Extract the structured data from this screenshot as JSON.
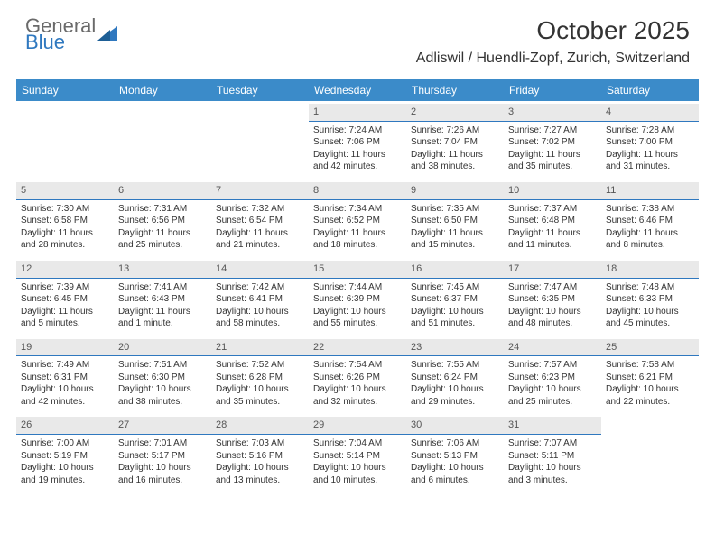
{
  "logo": {
    "line1": "General",
    "line2": "Blue"
  },
  "title": "October 2025",
  "location": "Adliswil / Huendli-Zopf, Zurich, Switzerland",
  "colors": {
    "header_bar": "#3b8bc9",
    "header_text": "#ffffff",
    "daynum_bg": "#e9e9e9",
    "daynum_border": "#2f78bf",
    "body_text": "#333333",
    "logo_gray": "#6a6a6a",
    "logo_blue": "#2f78bf",
    "background": "#ffffff"
  },
  "weekdays": [
    "Sunday",
    "Monday",
    "Tuesday",
    "Wednesday",
    "Thursday",
    "Friday",
    "Saturday"
  ],
  "weeks": [
    [
      {
        "n": "",
        "sr": "",
        "ss": "",
        "dl": ""
      },
      {
        "n": "",
        "sr": "",
        "ss": "",
        "dl": ""
      },
      {
        "n": "",
        "sr": "",
        "ss": "",
        "dl": ""
      },
      {
        "n": "1",
        "sr": "Sunrise: 7:24 AM",
        "ss": "Sunset: 7:06 PM",
        "dl": "Daylight: 11 hours and 42 minutes."
      },
      {
        "n": "2",
        "sr": "Sunrise: 7:26 AM",
        "ss": "Sunset: 7:04 PM",
        "dl": "Daylight: 11 hours and 38 minutes."
      },
      {
        "n": "3",
        "sr": "Sunrise: 7:27 AM",
        "ss": "Sunset: 7:02 PM",
        "dl": "Daylight: 11 hours and 35 minutes."
      },
      {
        "n": "4",
        "sr": "Sunrise: 7:28 AM",
        "ss": "Sunset: 7:00 PM",
        "dl": "Daylight: 11 hours and 31 minutes."
      }
    ],
    [
      {
        "n": "5",
        "sr": "Sunrise: 7:30 AM",
        "ss": "Sunset: 6:58 PM",
        "dl": "Daylight: 11 hours and 28 minutes."
      },
      {
        "n": "6",
        "sr": "Sunrise: 7:31 AM",
        "ss": "Sunset: 6:56 PM",
        "dl": "Daylight: 11 hours and 25 minutes."
      },
      {
        "n": "7",
        "sr": "Sunrise: 7:32 AM",
        "ss": "Sunset: 6:54 PM",
        "dl": "Daylight: 11 hours and 21 minutes."
      },
      {
        "n": "8",
        "sr": "Sunrise: 7:34 AM",
        "ss": "Sunset: 6:52 PM",
        "dl": "Daylight: 11 hours and 18 minutes."
      },
      {
        "n": "9",
        "sr": "Sunrise: 7:35 AM",
        "ss": "Sunset: 6:50 PM",
        "dl": "Daylight: 11 hours and 15 minutes."
      },
      {
        "n": "10",
        "sr": "Sunrise: 7:37 AM",
        "ss": "Sunset: 6:48 PM",
        "dl": "Daylight: 11 hours and 11 minutes."
      },
      {
        "n": "11",
        "sr": "Sunrise: 7:38 AM",
        "ss": "Sunset: 6:46 PM",
        "dl": "Daylight: 11 hours and 8 minutes."
      }
    ],
    [
      {
        "n": "12",
        "sr": "Sunrise: 7:39 AM",
        "ss": "Sunset: 6:45 PM",
        "dl": "Daylight: 11 hours and 5 minutes."
      },
      {
        "n": "13",
        "sr": "Sunrise: 7:41 AM",
        "ss": "Sunset: 6:43 PM",
        "dl": "Daylight: 11 hours and 1 minute."
      },
      {
        "n": "14",
        "sr": "Sunrise: 7:42 AM",
        "ss": "Sunset: 6:41 PM",
        "dl": "Daylight: 10 hours and 58 minutes."
      },
      {
        "n": "15",
        "sr": "Sunrise: 7:44 AM",
        "ss": "Sunset: 6:39 PM",
        "dl": "Daylight: 10 hours and 55 minutes."
      },
      {
        "n": "16",
        "sr": "Sunrise: 7:45 AM",
        "ss": "Sunset: 6:37 PM",
        "dl": "Daylight: 10 hours and 51 minutes."
      },
      {
        "n": "17",
        "sr": "Sunrise: 7:47 AM",
        "ss": "Sunset: 6:35 PM",
        "dl": "Daylight: 10 hours and 48 minutes."
      },
      {
        "n": "18",
        "sr": "Sunrise: 7:48 AM",
        "ss": "Sunset: 6:33 PM",
        "dl": "Daylight: 10 hours and 45 minutes."
      }
    ],
    [
      {
        "n": "19",
        "sr": "Sunrise: 7:49 AM",
        "ss": "Sunset: 6:31 PM",
        "dl": "Daylight: 10 hours and 42 minutes."
      },
      {
        "n": "20",
        "sr": "Sunrise: 7:51 AM",
        "ss": "Sunset: 6:30 PM",
        "dl": "Daylight: 10 hours and 38 minutes."
      },
      {
        "n": "21",
        "sr": "Sunrise: 7:52 AM",
        "ss": "Sunset: 6:28 PM",
        "dl": "Daylight: 10 hours and 35 minutes."
      },
      {
        "n": "22",
        "sr": "Sunrise: 7:54 AM",
        "ss": "Sunset: 6:26 PM",
        "dl": "Daylight: 10 hours and 32 minutes."
      },
      {
        "n": "23",
        "sr": "Sunrise: 7:55 AM",
        "ss": "Sunset: 6:24 PM",
        "dl": "Daylight: 10 hours and 29 minutes."
      },
      {
        "n": "24",
        "sr": "Sunrise: 7:57 AM",
        "ss": "Sunset: 6:23 PM",
        "dl": "Daylight: 10 hours and 25 minutes."
      },
      {
        "n": "25",
        "sr": "Sunrise: 7:58 AM",
        "ss": "Sunset: 6:21 PM",
        "dl": "Daylight: 10 hours and 22 minutes."
      }
    ],
    [
      {
        "n": "26",
        "sr": "Sunrise: 7:00 AM",
        "ss": "Sunset: 5:19 PM",
        "dl": "Daylight: 10 hours and 19 minutes."
      },
      {
        "n": "27",
        "sr": "Sunrise: 7:01 AM",
        "ss": "Sunset: 5:17 PM",
        "dl": "Daylight: 10 hours and 16 minutes."
      },
      {
        "n": "28",
        "sr": "Sunrise: 7:03 AM",
        "ss": "Sunset: 5:16 PM",
        "dl": "Daylight: 10 hours and 13 minutes."
      },
      {
        "n": "29",
        "sr": "Sunrise: 7:04 AM",
        "ss": "Sunset: 5:14 PM",
        "dl": "Daylight: 10 hours and 10 minutes."
      },
      {
        "n": "30",
        "sr": "Sunrise: 7:06 AM",
        "ss": "Sunset: 5:13 PM",
        "dl": "Daylight: 10 hours and 6 minutes."
      },
      {
        "n": "31",
        "sr": "Sunrise: 7:07 AM",
        "ss": "Sunset: 5:11 PM",
        "dl": "Daylight: 10 hours and 3 minutes."
      },
      {
        "n": "",
        "sr": "",
        "ss": "",
        "dl": ""
      }
    ]
  ]
}
